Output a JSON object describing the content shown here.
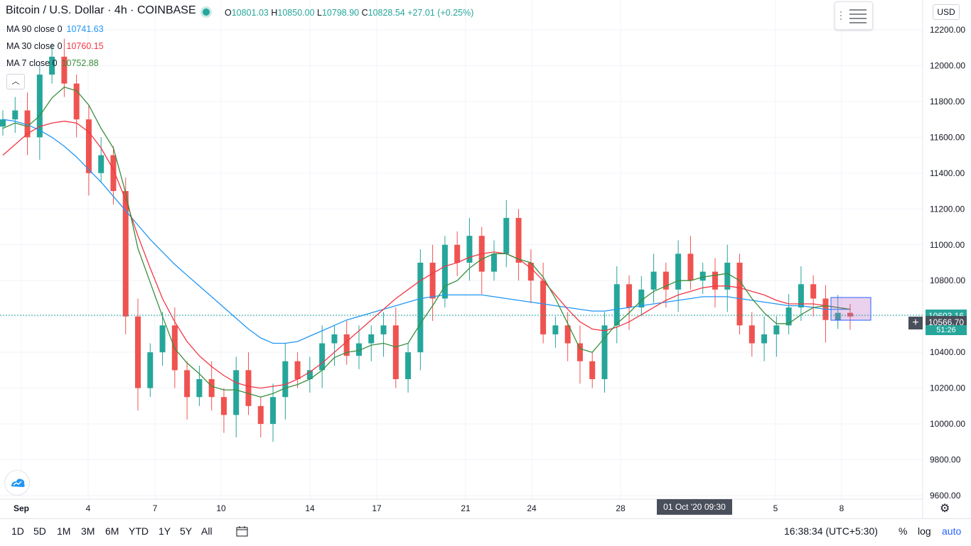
{
  "header": {
    "title": "Bitcoin / U.S. Dollar · 4h · COINBASE",
    "open_label": "O",
    "open": "10801.03",
    "high_label": "H",
    "high": "10850.00",
    "low_label": "L",
    "low": "10798.90",
    "close_label": "C",
    "close": "10828.54",
    "change": "+27.01 (+0.25%)"
  },
  "indicators": [
    {
      "label": "MA 90 close 0",
      "value": "10741.63",
      "color": "#2196f3"
    },
    {
      "label": "MA 30 close 0",
      "value": "10760.15",
      "color": "#f23645"
    },
    {
      "label": "MA 7 close 0",
      "value": "10752.88",
      "color": "#388e3c"
    }
  ],
  "currency": "USD",
  "price_tags": {
    "current": "10603.16",
    "crosshair": "10566.70",
    "countdown": "51:26"
  },
  "date_tooltip": "01 Oct '20  09:30",
  "ranges": [
    "1D",
    "5D",
    "1M",
    "3M",
    "6M",
    "YTD",
    "1Y",
    "5Y",
    "All"
  ],
  "clock": "16:38:34 (UTC+5:30)",
  "scale_options": {
    "percent": "%",
    "log": "log",
    "auto": "auto"
  },
  "chart_data": {
    "type": "candlestick",
    "ylim": [
      9600,
      12300
    ],
    "y_ticks": [
      9600,
      9800,
      10000,
      10200,
      10400,
      10600,
      10800,
      11000,
      11200,
      11400,
      11600,
      11800,
      12000,
      12200
    ],
    "x_ticks": [
      "Sep",
      "4",
      "7",
      "10",
      "14",
      "17",
      "21",
      "24",
      "28",
      "5",
      "8"
    ],
    "up_color": "#26a69a",
    "down_color": "#ef5350",
    "close": [
      11700,
      11750,
      11600,
      11950,
      12050,
      11900,
      11700,
      11400,
      11500,
      11300,
      10600,
      10200,
      10400,
      10550,
      10300,
      10150,
      10250,
      10150,
      10050,
      10300,
      10100,
      10000,
      10150,
      10350,
      10250,
      10300,
      10450,
      10500,
      10380,
      10450,
      10500,
      10550,
      10250,
      10400,
      10900,
      10700,
      11000,
      10900,
      11050,
      10850,
      10950,
      11150,
      10900,
      10800,
      10500,
      10550,
      10450,
      10350,
      10250,
      10550,
      10780,
      10650,
      10750,
      10850,
      10750,
      10950,
      10800,
      10850,
      10750,
      10900,
      10550,
      10450,
      10500,
      10550,
      10650,
      10780,
      10700,
      10580,
      10620,
      10600
    ],
    "ma7": [
      11650,
      11680,
      11660,
      11720,
      11820,
      11880,
      11860,
      11780,
      11650,
      11540,
      11290,
      10980,
      10790,
      10600,
      10420,
      10340,
      10280,
      10210,
      10190,
      10190,
      10170,
      10150,
      10170,
      10200,
      10220,
      10250,
      10300,
      10370,
      10400,
      10410,
      10440,
      10450,
      10430,
      10450,
      10560,
      10660,
      10770,
      10800,
      10870,
      10920,
      10950,
      10950,
      10920,
      10900,
      10820,
      10700,
      10560,
      10420,
      10400,
      10480,
      10560,
      10620,
      10690,
      10740,
      10770,
      10800,
      10800,
      10820,
      10830,
      10840,
      10800,
      10700,
      10620,
      10560,
      10560,
      10610,
      10650,
      10660,
      10650,
      10640
    ],
    "ma30": [
      11500,
      11560,
      11620,
      11660,
      11680,
      11690,
      11680,
      11630,
      11540,
      11420,
      11250,
      11050,
      10870,
      10700,
      10570,
      10460,
      10380,
      10320,
      10270,
      10230,
      10210,
      10200,
      10210,
      10220,
      10250,
      10290,
      10340,
      10400,
      10460,
      10520,
      10580,
      10640,
      10700,
      10750,
      10800,
      10840,
      10880,
      10900,
      10930,
      10950,
      10960,
      10950,
      10920,
      10870,
      10800,
      10720,
      10640,
      10570,
      10530,
      10520,
      10540,
      10570,
      10610,
      10650,
      10690,
      10720,
      10740,
      10760,
      10770,
      10770,
      10760,
      10740,
      10720,
      10690,
      10670,
      10670,
      10670,
      10660,
      10650,
      10640
    ],
    "ma90": [
      11700,
      11690,
      11670,
      11640,
      11600,
      11550,
      11490,
      11420,
      11350,
      11270,
      11190,
      11110,
      11030,
      10960,
      10890,
      10830,
      10770,
      10710,
      10650,
      10590,
      10530,
      10480,
      10450,
      10450,
      10460,
      10490,
      10520,
      10550,
      10580,
      10600,
      10620,
      10640,
      10660,
      10680,
      10700,
      10710,
      10720,
      10720,
      10720,
      10720,
      10710,
      10700,
      10690,
      10680,
      10670,
      10660,
      10650,
      10640,
      10630,
      10630,
      10640,
      10650,
      10660,
      10670,
      10680,
      10690,
      10700,
      10710,
      10710,
      10710,
      10700,
      10690,
      10680,
      10670,
      10660,
      10660,
      10650,
      10640,
      10640,
      10640
    ]
  }
}
